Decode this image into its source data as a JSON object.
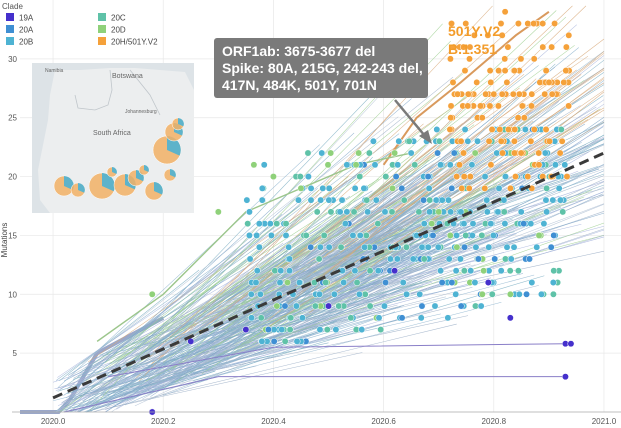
{
  "chart_data": {
    "type": "scatter",
    "ylabel": "Mutations",
    "legend_title": "Clade",
    "x_ticks": [
      "2020.0",
      "2020.2",
      "2020.4",
      "2020.6",
      "2020.8",
      "2021.0"
    ],
    "y_ticks": [
      "5",
      "10",
      "15",
      "20",
      "25",
      "30"
    ],
    "xlim": [
      2019.94,
      2021.02
    ],
    "ylim": [
      0,
      35
    ],
    "grid": true,
    "legend_placement": "top-left",
    "series": [
      {
        "name": "19A",
        "color": "#4530cc"
      },
      {
        "name": "20A",
        "color": "#3f8fd3"
      },
      {
        "name": "20B",
        "color": "#4eb3d3"
      },
      {
        "name": "20C",
        "color": "#5fc2a8"
      },
      {
        "name": "20D",
        "color": "#8fd17a"
      },
      {
        "name": "20H/501Y.V2",
        "color": "#f5a13a"
      }
    ],
    "trend": {
      "x": [
        2020.0,
        2021.0
      ],
      "y": [
        1.2,
        22.0
      ],
      "style": "dashed"
    },
    "annotation": {
      "lines": [
        "ORF1ab: 3675-3677 del",
        "Spike: 80A, 215G, 242-243 del,",
        "417N, 484K, 501Y, 701N"
      ],
      "arrow_to": {
        "x": 2020.68,
        "y": 25
      }
    },
    "variant_label": [
      "501Y.V2",
      "B.1.351"
    ]
  },
  "map": {
    "country_1": "Botswana",
    "country_2": "South Africa",
    "city_1": "Namibia",
    "city_2": "Johannesburg"
  }
}
